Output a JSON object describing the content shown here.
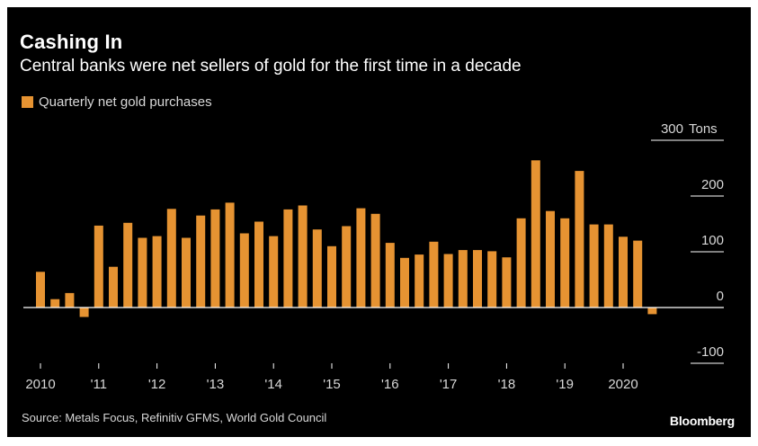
{
  "title": "Cashing In",
  "subtitle": "Central banks were net sellers of gold for the first time in a decade",
  "source": "Source: Metals Focus, Refinitiv GFMS, World Gold Council",
  "brand": "Bloomberg",
  "colors": {
    "background": "#000000",
    "bar": "#e69332",
    "text": "#d8d8d8",
    "axis": "#ffffff"
  },
  "chart_data": {
    "type": "bar",
    "legend": [
      "Quarterly net gold purchases"
    ],
    "y_unit": "Tons",
    "ylim": [
      -100,
      300
    ],
    "y_ticks": [
      -100,
      0,
      100,
      200,
      300
    ],
    "y_tick_labels": [
      "-100",
      "0",
      "100",
      "200",
      "300"
    ],
    "y_axis_position": "right",
    "grid": false,
    "x_tick_labels": [
      "2010",
      "'11",
      "'12",
      "'13",
      "'14",
      "'15",
      "'16",
      "'17",
      "'18",
      "'19",
      "2020"
    ],
    "categories": [
      "2010 Q1",
      "2010 Q2",
      "2010 Q3",
      "2010 Q4",
      "2011 Q1",
      "2011 Q2",
      "2011 Q3",
      "2011 Q4",
      "2012 Q1",
      "2012 Q2",
      "2012 Q3",
      "2012 Q4",
      "2013 Q1",
      "2013 Q2",
      "2013 Q3",
      "2013 Q4",
      "2014 Q1",
      "2014 Q2",
      "2014 Q3",
      "2014 Q4",
      "2015 Q1",
      "2015 Q2",
      "2015 Q3",
      "2015 Q4",
      "2016 Q1",
      "2016 Q2",
      "2016 Q3",
      "2016 Q4",
      "2017 Q1",
      "2017 Q2",
      "2017 Q3",
      "2017 Q4",
      "2018 Q1",
      "2018 Q2",
      "2018 Q3",
      "2018 Q4",
      "2019 Q1",
      "2019 Q2",
      "2019 Q3",
      "2019 Q4",
      "2020 Q1",
      "2020 Q2",
      "2020 Q3"
    ],
    "series": [
      {
        "name": "Quarterly net gold purchases",
        "values": [
          64,
          15,
          26,
          -17,
          147,
          73,
          152,
          125,
          128,
          177,
          125,
          165,
          176,
          188,
          133,
          154,
          128,
          176,
          183,
          140,
          110,
          146,
          178,
          168,
          116,
          89,
          95,
          118,
          96,
          103,
          103,
          101,
          90,
          160,
          264,
          173,
          160,
          245,
          149,
          149,
          127,
          120,
          -12
        ]
      }
    ]
  }
}
